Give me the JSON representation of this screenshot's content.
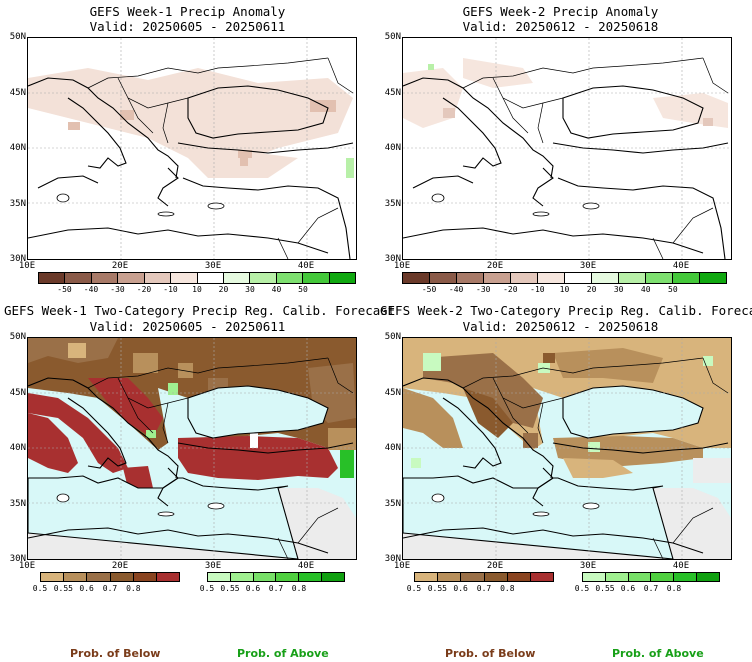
{
  "panels": [
    {
      "title": "GEFS Week-1 Precip Anomaly",
      "valid": "Valid: 20250605 - 20250611"
    },
    {
      "title": "GEFS Week-2 Precip Anomaly",
      "valid": "Valid: 20250612 - 20250618"
    },
    {
      "title": "GEFS Week-1 Two-Category Precip Reg. Calib. Forecast",
      "valid": "Valid: 20250605 - 20250611"
    },
    {
      "title": "GEFS Week-2 Two-Category Precip Reg. Calib. Forecast",
      "valid": "Valid: 20250612 - 20250618"
    }
  ],
  "lat_labels": [
    "50N",
    "45N",
    "40N",
    "35N",
    "30N"
  ],
  "lon_labels": [
    "10E",
    "20E",
    "30E",
    "40E"
  ],
  "anomaly_colorbar": {
    "ticks": [
      "-50",
      "-40",
      "-30",
      "-20",
      "-10",
      "10",
      "20",
      "30",
      "40",
      "50"
    ],
    "colors": [
      "#6b3a2a",
      "#8a5a48",
      "#a87a68",
      "#c8a090",
      "#e4c8bc",
      "#f6e6de",
      "#ffffff",
      "#e6fae0",
      "#b8f0a8",
      "#7ee070",
      "#44c83a",
      "#10a810"
    ]
  },
  "below_colorbar": {
    "ticks": [
      "0.5",
      "0.55",
      "0.6",
      "0.7",
      "0.8"
    ],
    "colors": [
      "#d8b47c",
      "#b8905c",
      "#9a7048",
      "#8a5a2e",
      "#8a4420",
      "#a83030"
    ]
  },
  "above_colorbar": {
    "ticks": [
      "0.5",
      "0.55",
      "0.6",
      "0.7",
      "0.8"
    ],
    "colors": [
      "#c8fac0",
      "#a0f090",
      "#78e068",
      "#50d040",
      "#28c028",
      "#10a010"
    ]
  },
  "legend": {
    "below": "Prob. of Below",
    "above": "Prob. of Above"
  },
  "colors": {
    "below_legend": "#7a3c1a",
    "above_legend": "#18a018",
    "sea": "#d8f8f8",
    "land_grey": "#ececec"
  }
}
